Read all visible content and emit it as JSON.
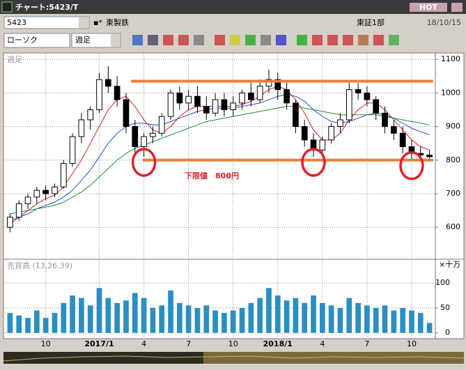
{
  "window": {
    "title": "チャート:5423/T",
    "hot": "HOT"
  },
  "toolbar": {
    "code": "5423",
    "name": "東製鉄",
    "market": "東証1部",
    "date": "18/10/15",
    "chart_style": "ローソク",
    "period": "週足"
  },
  "chart_data": {
    "type": "candlestick",
    "pane_label": "週足",
    "categories": [
      null,
      null,
      null,
      null,
      "10",
      null,
      null,
      null,
      null,
      null,
      "2017/1",
      null,
      null,
      null,
      null,
      "4",
      null,
      null,
      null,
      null,
      "7",
      null,
      null,
      null,
      null,
      "10",
      null,
      null,
      null,
      null,
      "2018/1",
      null,
      null,
      null,
      null,
      "4",
      null,
      null,
      null,
      null,
      "7",
      null,
      null,
      null,
      null,
      "10",
      null,
      null
    ],
    "open": [
      600,
      630,
      670,
      690,
      710,
      700,
      720,
      790,
      870,
      920,
      950,
      1040,
      1020,
      980,
      900,
      840,
      870,
      880,
      930,
      1000,
      970,
      990,
      960,
      940,
      980,
      950,
      970,
      1000,
      980,
      1020,
      1040,
      1010,
      970,
      900,
      860,
      830,
      860,
      900,
      920,
      1010,
      1000,
      980,
      940,
      900,
      880,
      840,
      820,
      815
    ],
    "high": [
      640,
      680,
      700,
      720,
      725,
      730,
      800,
      880,
      940,
      960,
      1060,
      1080,
      1050,
      1000,
      920,
      880,
      900,
      940,
      1010,
      1020,
      1010,
      1020,
      990,
      1000,
      1000,
      990,
      1010,
      1030,
      1040,
      1070,
      1060,
      1030,
      980,
      920,
      880,
      870,
      910,
      940,
      1030,
      1030,
      1020,
      990,
      960,
      920,
      900,
      860,
      840,
      830
    ],
    "low": [
      585,
      620,
      655,
      670,
      680,
      690,
      715,
      780,
      850,
      890,
      940,
      1000,
      960,
      880,
      820,
      810,
      850,
      870,
      920,
      950,
      950,
      940,
      920,
      930,
      930,
      930,
      950,
      960,
      970,
      1000,
      980,
      950,
      880,
      840,
      810,
      810,
      850,
      880,
      910,
      980,
      960,
      920,
      880,
      860,
      820,
      800,
      800,
      800
    ],
    "close": [
      630,
      670,
      690,
      710,
      700,
      720,
      790,
      870,
      920,
      950,
      1040,
      1020,
      980,
      900,
      840,
      870,
      880,
      930,
      1000,
      970,
      990,
      960,
      940,
      980,
      950,
      970,
      1000,
      980,
      1020,
      1040,
      1010,
      970,
      900,
      860,
      830,
      860,
      900,
      920,
      1010,
      1000,
      980,
      940,
      900,
      880,
      840,
      820,
      815,
      810
    ],
    "series": [
      {
        "color": "#d0202a",
        "values": [
          610,
          630,
          650,
          670,
          685,
          695,
          720,
          760,
          800,
          850,
          900,
          950,
          980,
          990,
          960,
          920,
          890,
          880,
          900,
          930,
          950,
          960,
          960,
          960,
          960,
          960,
          965,
          975,
          990,
          1010,
          1020,
          1010,
          980,
          940,
          890,
          860,
          860,
          880,
          920,
          950,
          970,
          970,
          950,
          920,
          890,
          860,
          840,
          830
        ]
      },
      {
        "color": "#2050d0",
        "values": [
          620,
          630,
          640,
          655,
          665,
          675,
          690,
          710,
          740,
          770,
          810,
          850,
          880,
          900,
          910,
          910,
          905,
          905,
          915,
          925,
          935,
          945,
          950,
          955,
          955,
          955,
          960,
          965,
          970,
          980,
          990,
          995,
          990,
          975,
          950,
          930,
          915,
          910,
          915,
          925,
          935,
          940,
          935,
          925,
          910,
          895,
          885,
          875
        ]
      },
      {
        "color": "#1a8a3a",
        "values": [
          640,
          645,
          650,
          655,
          660,
          665,
          675,
          690,
          705,
          725,
          750,
          775,
          800,
          820,
          835,
          845,
          855,
          865,
          875,
          885,
          895,
          905,
          915,
          920,
          925,
          930,
          935,
          940,
          945,
          950,
          955,
          960,
          960,
          955,
          950,
          945,
          940,
          935,
          935,
          935,
          935,
          935,
          930,
          925,
          920,
          915,
          910,
          905
        ]
      }
    ],
    "ylim": [
      509,
      1115
    ],
    "yticks": [
      600,
      700,
      800,
      900,
      1000,
      1100
    ],
    "grid": true,
    "hlines": [
      1035,
      800
    ],
    "hline_color": "#e8803a",
    "annotation": "下限値　800円",
    "annotation_color": "#e0202a",
    "highlight_points": [
      15,
      34,
      45
    ],
    "volume": {
      "label": "売買高 (13,26,39)",
      "unit": "×十万",
      "color": "#2a8fc0",
      "values": [
        40,
        35,
        30,
        45,
        30,
        40,
        60,
        75,
        70,
        55,
        90,
        70,
        60,
        65,
        80,
        70,
        50,
        55,
        85,
        60,
        55,
        50,
        55,
        45,
        40,
        45,
        50,
        60,
        70,
        90,
        75,
        65,
        70,
        60,
        75,
        60,
        55,
        50,
        70,
        60,
        55,
        50,
        55,
        45,
        50,
        45,
        40,
        20
      ],
      "ylim": [
        -6,
        145
      ],
      "yticks": [
        0,
        50,
        100
      ]
    }
  }
}
